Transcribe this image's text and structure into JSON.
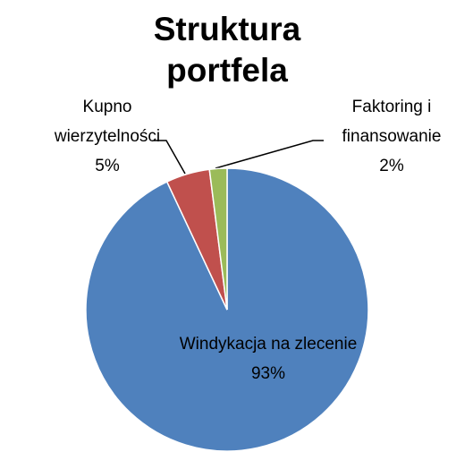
{
  "chart_data": {
    "type": "pie",
    "title": "Struktura portfela",
    "categories": [
      "Windykacja na zlecenie",
      "Kupno wierzytelności",
      "Faktoring i finansowanie"
    ],
    "values": [
      93,
      5,
      2
    ],
    "value_labels": [
      "93%",
      "5%",
      "2%"
    ],
    "colors": [
      "#4f81bd",
      "#c0504d",
      "#9bbb59"
    ]
  }
}
